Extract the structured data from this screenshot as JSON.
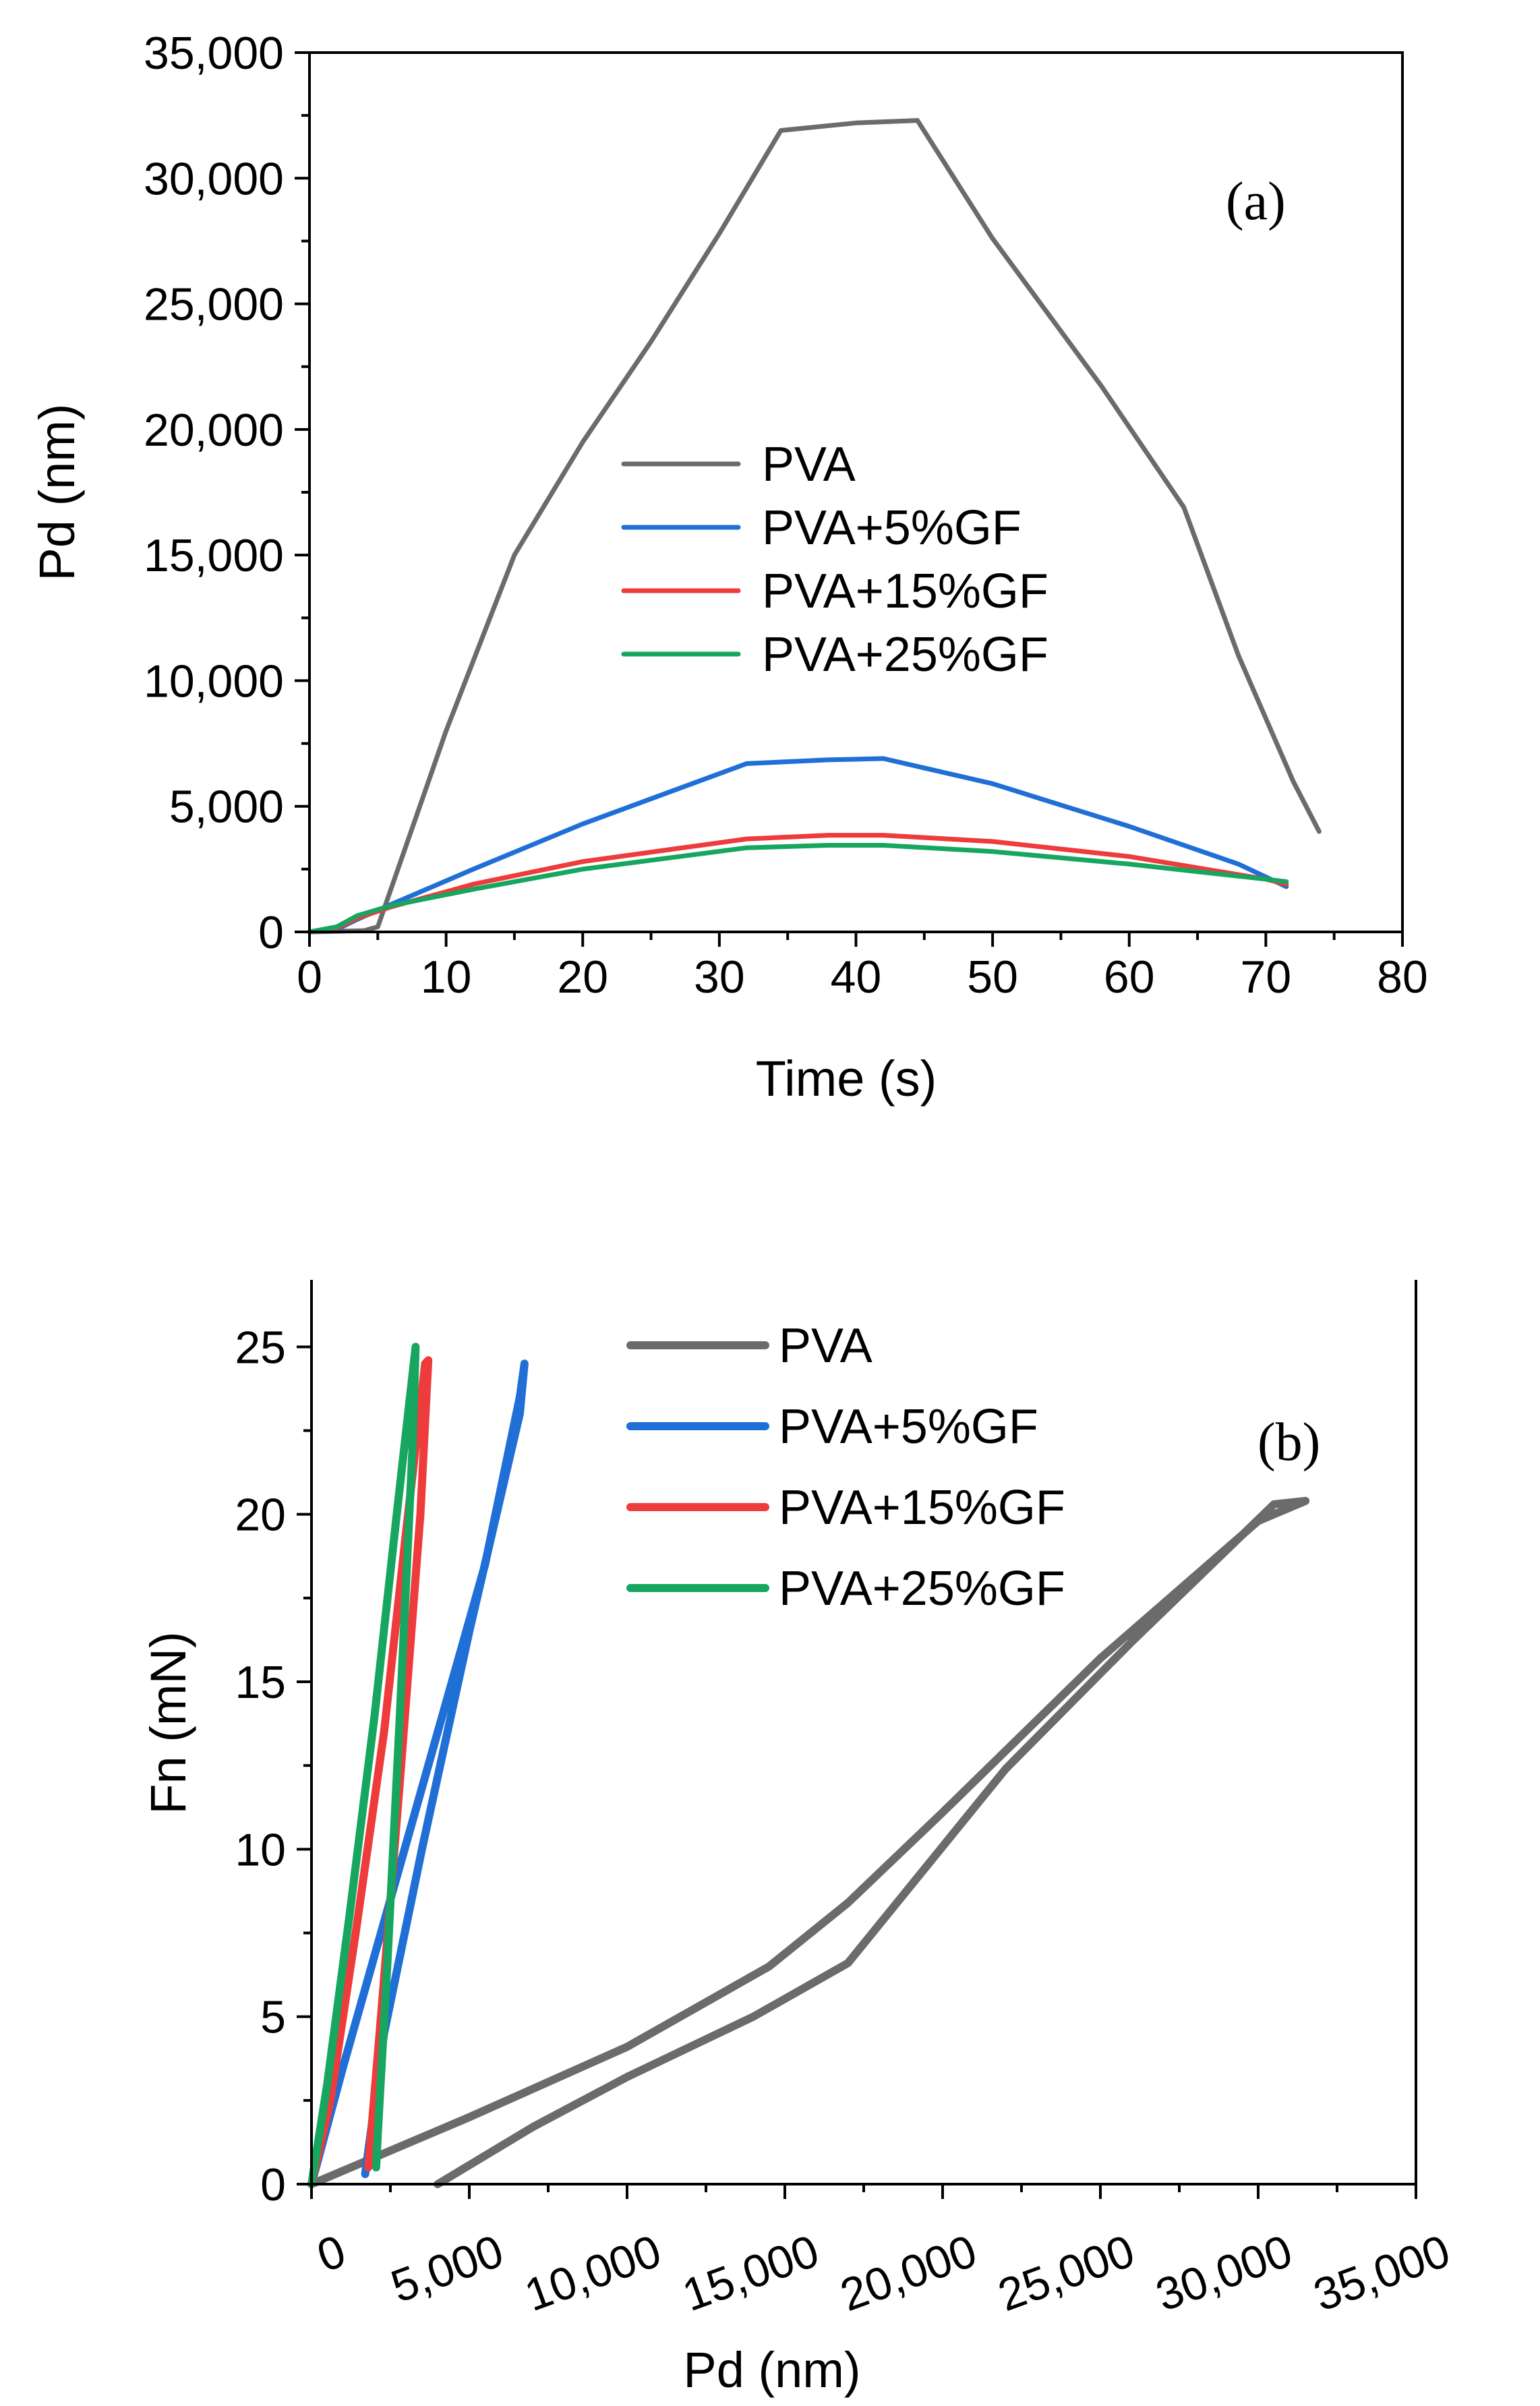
{
  "chart_data": [
    {
      "type": "line",
      "panel_label": "(a)",
      "xlabel": "Time (s)",
      "ylabel": "Pd (nm)",
      "xlim": [
        0,
        80
      ],
      "ylim": [
        0,
        35000
      ],
      "x_ticks": [
        0,
        10,
        20,
        30,
        40,
        50,
        60,
        70,
        80
      ],
      "x_tick_labels": [
        "0",
        "10",
        "20",
        "30",
        "40",
        "50",
        "60",
        "70",
        "80"
      ],
      "y_ticks": [
        0,
        5000,
        10000,
        15000,
        20000,
        25000,
        30000,
        35000
      ],
      "y_tick_labels": [
        "0",
        "5,000",
        "10,000",
        "15,000",
        "20,000",
        "25,000",
        "30,000",
        "35,000"
      ],
      "legend_position": "center-left",
      "series": [
        {
          "name": "PVA",
          "color": "#6b6b6b",
          "points": [
            [
              0,
              0
            ],
            [
              4,
              50
            ],
            [
              5,
              200
            ],
            [
              10,
              8000
            ],
            [
              15,
              15000
            ],
            [
              20,
              19500
            ],
            [
              25,
              23500
            ],
            [
              30,
              27800
            ],
            [
              34.5,
              31900
            ],
            [
              40,
              32200
            ],
            [
              44.5,
              32300
            ],
            [
              50,
              27600
            ],
            [
              58,
              21700
            ],
            [
              64,
              16900
            ],
            [
              68,
              11000
            ],
            [
              72,
              6000
            ],
            [
              73.9,
              4000
            ]
          ]
        },
        {
          "name": "PVA+5%GF",
          "color": "#1f6fd6",
          "points": [
            [
              0,
              0
            ],
            [
              2,
              100
            ],
            [
              3.5,
              500
            ],
            [
              6,
              1100
            ],
            [
              12,
              2500
            ],
            [
              20,
              4300
            ],
            [
              32,
              6700
            ],
            [
              38,
              6850
            ],
            [
              42,
              6900
            ],
            [
              50,
              5900
            ],
            [
              60,
              4200
            ],
            [
              68,
              2700
            ],
            [
              71.5,
              1800
            ]
          ]
        },
        {
          "name": "PVA+15%GF",
          "color": "#ee3b3b",
          "points": [
            [
              0,
              0
            ],
            [
              2,
              150
            ],
            [
              3.5,
              550
            ],
            [
              6,
              1000
            ],
            [
              12,
              1900
            ],
            [
              20,
              2800
            ],
            [
              32,
              3700
            ],
            [
              38,
              3850
            ],
            [
              42,
              3850
            ],
            [
              50,
              3600
            ],
            [
              60,
              3000
            ],
            [
              70,
              2100
            ],
            [
              71.5,
              1900
            ]
          ]
        },
        {
          "name": "PVA+25%GF",
          "color": "#16a660",
          "points": [
            [
              0,
              0
            ],
            [
              2,
              200
            ],
            [
              3.5,
              650
            ],
            [
              6,
              1050
            ],
            [
              12,
              1700
            ],
            [
              20,
              2500
            ],
            [
              32,
              3350
            ],
            [
              38,
              3450
            ],
            [
              42,
              3450
            ],
            [
              50,
              3200
            ],
            [
              60,
              2700
            ],
            [
              70,
              2100
            ],
            [
              71.5,
              2000
            ]
          ]
        }
      ]
    },
    {
      "type": "line",
      "panel_label": "(b)",
      "xlabel": "Pd (nm)",
      "ylabel": "Fn (mN)",
      "xlim": [
        0,
        35000
      ],
      "ylim": [
        0,
        27
      ],
      "x_ticks": [
        0,
        5000,
        10000,
        15000,
        20000,
        25000,
        30000,
        35000
      ],
      "x_tick_labels": [
        "0",
        "5,000",
        "10,000",
        "15,000",
        "20,000",
        "25,000",
        "30,000",
        "35,000"
      ],
      "y_ticks": [
        0,
        5,
        10,
        15,
        20,
        25
      ],
      "y_tick_labels": [
        "0",
        "5",
        "10",
        "15",
        "20",
        "25"
      ],
      "legend_position": "top-center",
      "series": [
        {
          "name": "PVA",
          "color": "#6b6b6b",
          "points": [
            [
              0,
              0
            ],
            [
              5000,
              2.0
            ],
            [
              10000,
              4.1
            ],
            [
              14500,
              6.5
            ],
            [
              17000,
              8.4
            ],
            [
              20000,
              11.1
            ],
            [
              25000,
              15.7
            ],
            [
              30000,
              19.8
            ],
            [
              31500,
              20.4
            ],
            [
              30500,
              20.3
            ],
            [
              26000,
              16.2
            ],
            [
              22000,
              12.4
            ],
            [
              17000,
              6.6
            ],
            [
              14000,
              5.0
            ],
            [
              10000,
              3.2
            ],
            [
              7000,
              1.7
            ],
            [
              4000,
              0
            ]
          ]
        },
        {
          "name": "PVA+5%GF",
          "color": "#1f6fd6",
          "points": [
            [
              0,
              0
            ],
            [
              1000,
              3.5
            ],
            [
              2500,
              8.5
            ],
            [
              4000,
              13.5
            ],
            [
              5500,
              18.5
            ],
            [
              6600,
              23.5
            ],
            [
              6750,
              24.5
            ],
            [
              6600,
              23.0
            ],
            [
              5000,
              16.5
            ],
            [
              3500,
              10.0
            ],
            [
              2300,
              4.5
            ],
            [
              1700,
              0.3
            ]
          ]
        },
        {
          "name": "PVA+15%GF",
          "color": "#ee3b3b",
          "points": [
            [
              0,
              0
            ],
            [
              600,
              2.5
            ],
            [
              1400,
              7.5
            ],
            [
              2300,
              13.5
            ],
            [
              3000,
              19.5
            ],
            [
              3600,
              24.5
            ],
            [
              3700,
              24.6
            ],
            [
              3450,
              20.0
            ],
            [
              2800,
              12.0
            ],
            [
              2200,
              5.0
            ],
            [
              1800,
              0.5
            ]
          ]
        },
        {
          "name": "PVA+25%GF",
          "color": "#16a660",
          "points": [
            [
              0,
              0
            ],
            [
              500,
              3.0
            ],
            [
              1200,
              8.0
            ],
            [
              2000,
              14.0
            ],
            [
              2700,
              20.0
            ],
            [
              3300,
              25.0
            ],
            [
              3200,
              22.0
            ],
            [
              2800,
              14.0
            ],
            [
              2400,
              6.5
            ],
            [
              2100,
              1.5
            ],
            [
              2050,
              0.5
            ]
          ]
        }
      ]
    }
  ]
}
